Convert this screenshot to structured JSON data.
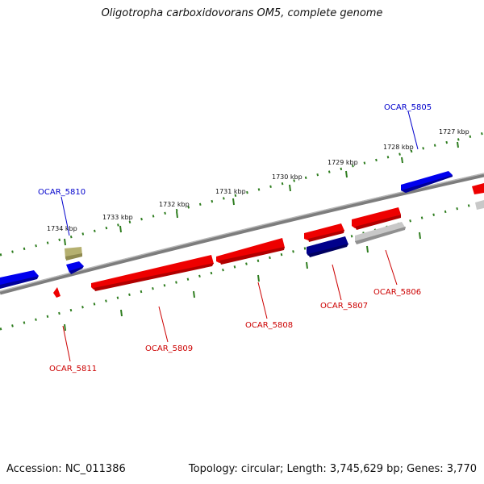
{
  "title": "Oligotropha carboxidovorans OM5, complete genome",
  "accession": "Accession: NC_011386",
  "topology": "Topology: circular; Length: 3,745,629 bp; Genes: 3,770",
  "kbp_labels": [
    "1727 kbp",
    "1728 kbp",
    "1729 kbp",
    "1730 kbp",
    "1731 kbp",
    "1732 kbp",
    "1733 kbp",
    "1734 kbp"
  ],
  "gene_labels": {
    "ocar_5805": "OCAR_5805",
    "ocar_5810": "OCAR_5810",
    "ocar_5806": "OCAR_5806",
    "ocar_5807": "OCAR_5807",
    "ocar_5808": "OCAR_5808",
    "ocar_5809": "OCAR_5809",
    "ocar_5811": "OCAR_5811"
  },
  "colors": {
    "backbone": "#8a8a8a",
    "tick": "#2e7d1f",
    "forward_gene": "#0000ee",
    "reverse_gene": "#ee0000",
    "olive_gene": "#b5b070",
    "navy_gene": "#00008b",
    "grey_gene": "#c8c8c8",
    "forward_label": "#0000cc",
    "reverse_label": "#cc0000"
  }
}
